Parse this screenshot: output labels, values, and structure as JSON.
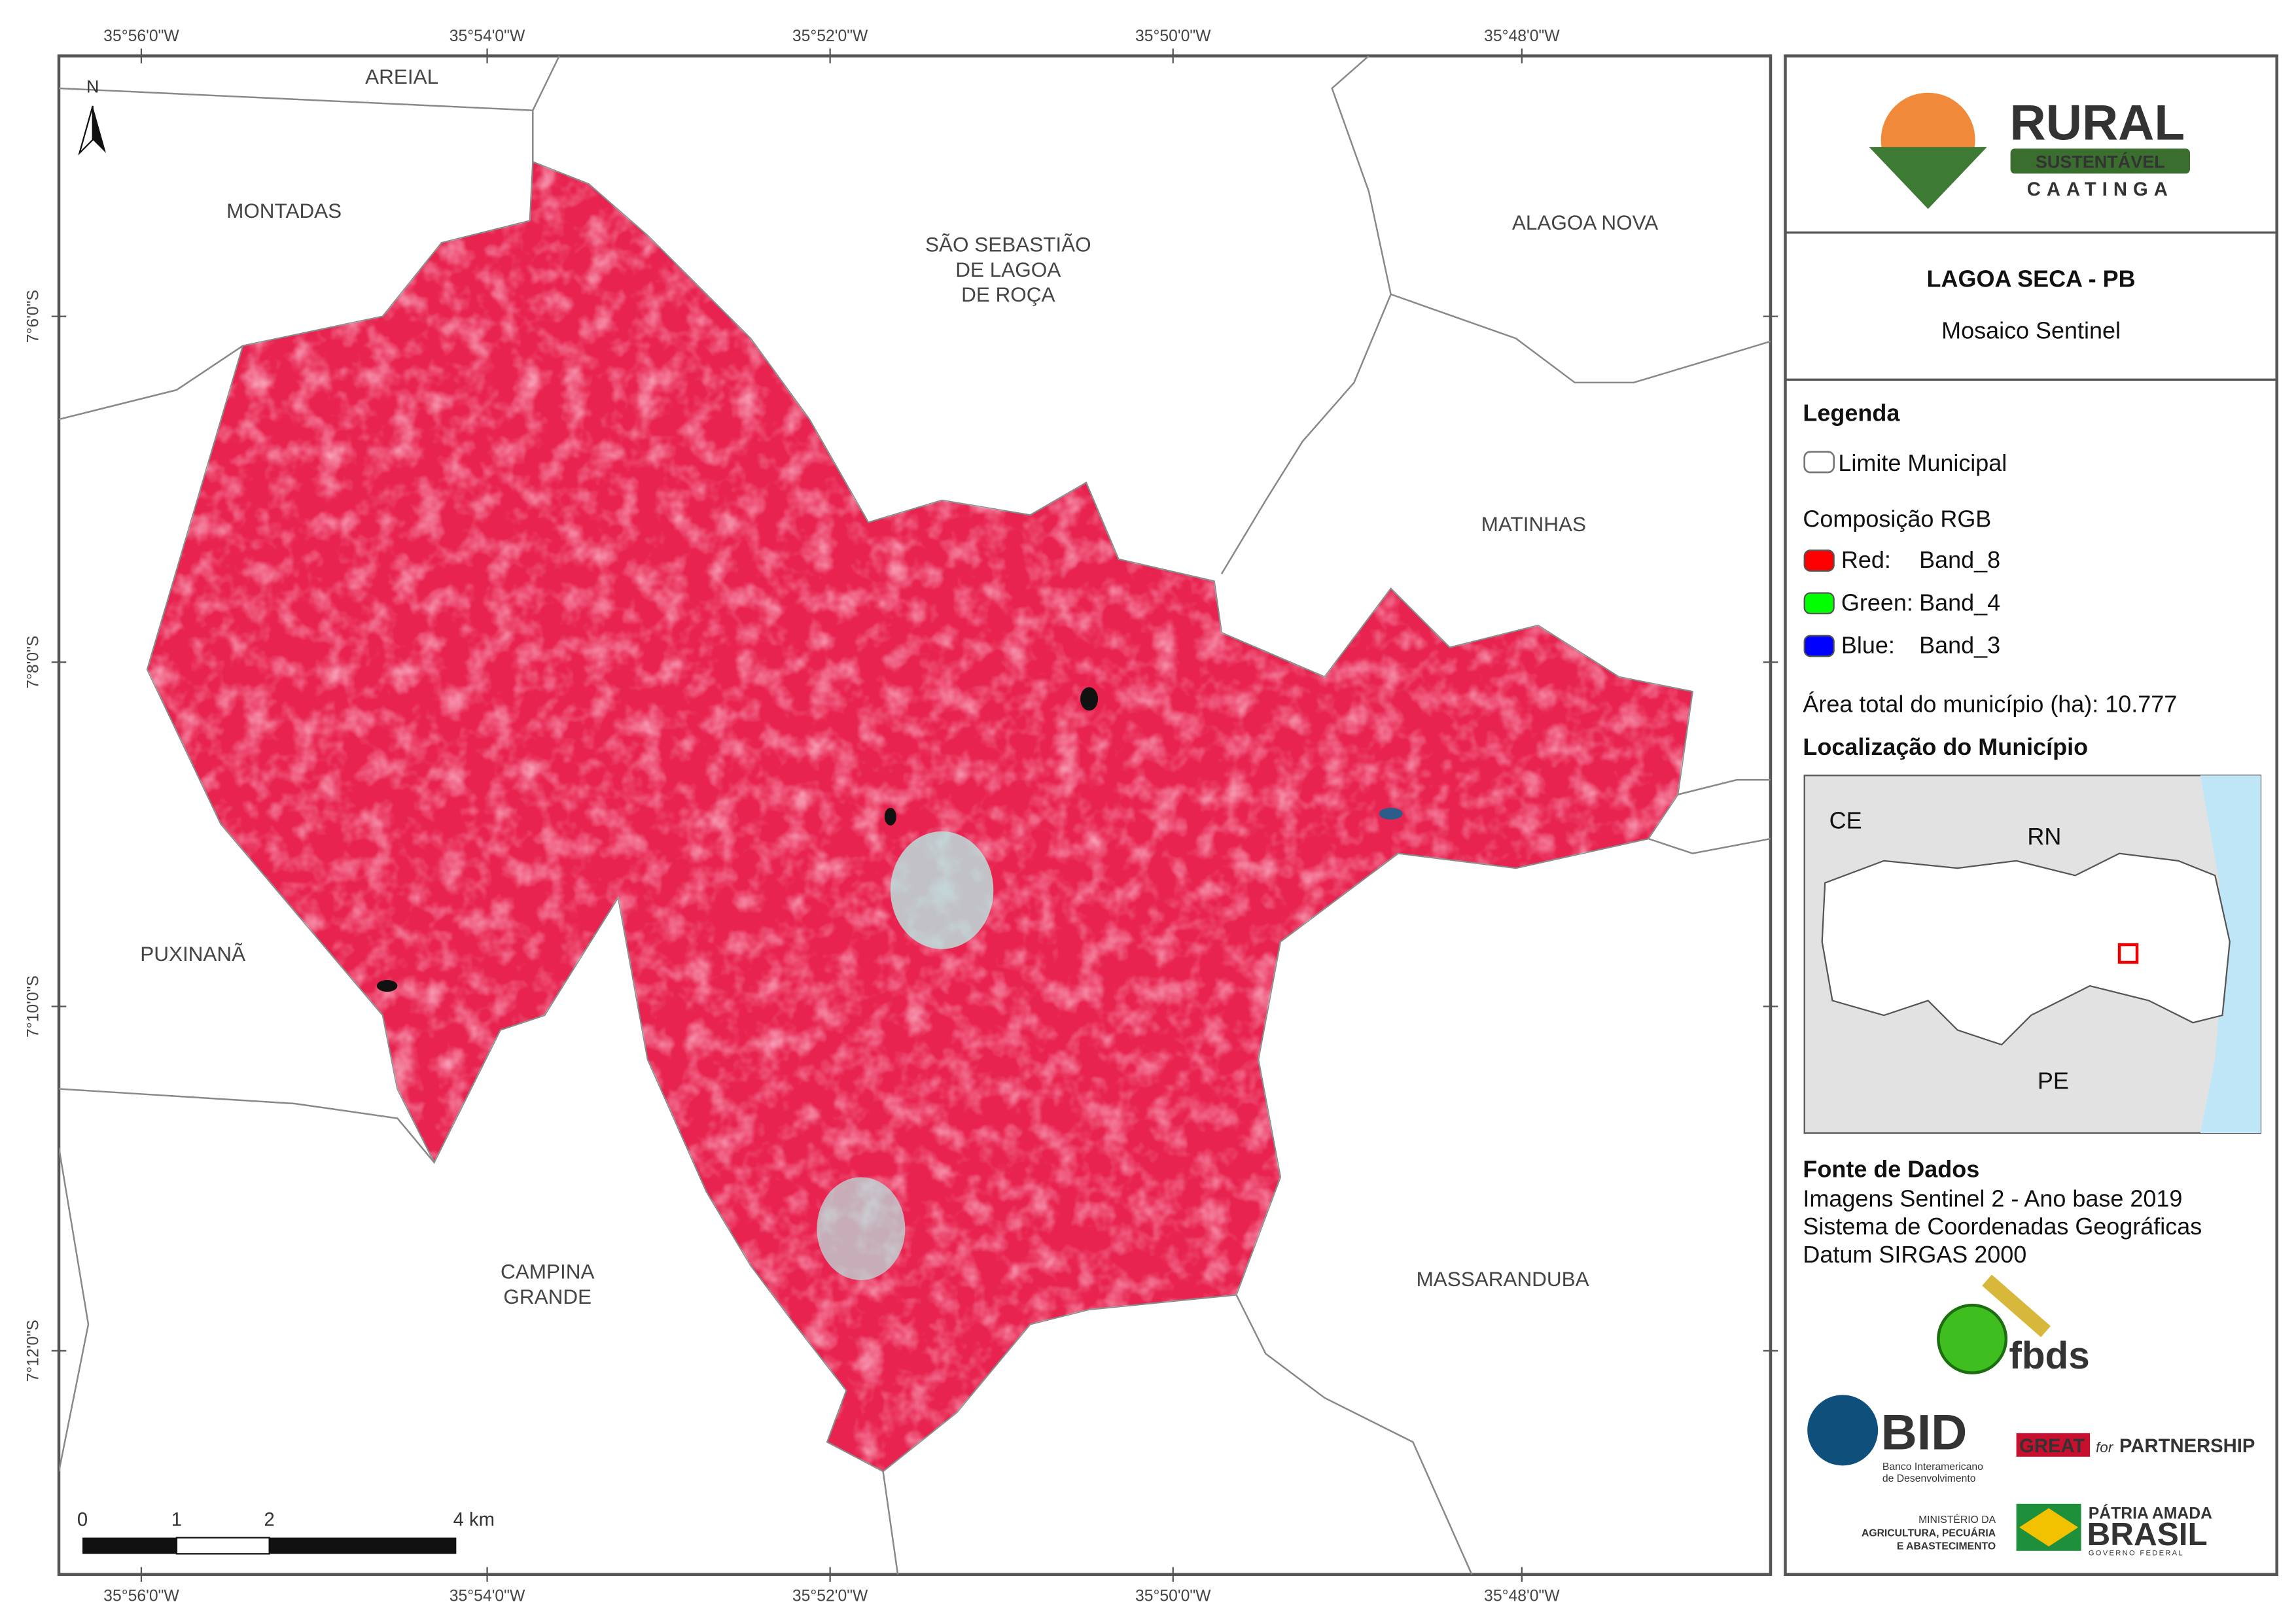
{
  "map": {
    "x_coords": [
      "35°56'0\"W",
      "35°54'0\"W",
      "35°52'0\"W",
      "35°50'0\"W",
      "35°48'0\"W"
    ],
    "y_coords": [
      "7°6'0\"S",
      "7°8'0\"S",
      "7°10'0\"S",
      "7°12'0\"S"
    ],
    "north": "N",
    "places": [
      {
        "lines": [
          "AREIAL"
        ]
      },
      {
        "lines": [
          "MONTADAS"
        ]
      },
      {
        "lines": [
          "SÃO SEBASTIÃO",
          "DE LAGOA",
          "DE ROÇA"
        ]
      },
      {
        "lines": [
          "ALAGOA NOVA"
        ]
      },
      {
        "lines": [
          "MATINHAS"
        ]
      },
      {
        "lines": [
          "PUXINANÃ"
        ]
      },
      {
        "lines": [
          "CAMPINA",
          "GRANDE"
        ]
      },
      {
        "lines": [
          "MASSARANDUBA"
        ]
      }
    ],
    "scale_labels": [
      "0",
      "1",
      "2",
      "4 km"
    ]
  },
  "panel": {
    "logo": {
      "title": "RURAL",
      "subtitle": "SUSTENTÁVEL",
      "tagline": "CAATINGA"
    },
    "title": "LAGOA SECA - PB",
    "subtitle": "Mosaico Sentinel",
    "legend": {
      "heading": "Legenda",
      "boundary": "Limite Municipal",
      "rgb_heading": "Composição RGB",
      "bands": [
        {
          "channel": "Red:",
          "band": "Band_8",
          "color": "#ff0000"
        },
        {
          "channel": "Green:",
          "band": "Band_4",
          "color": "#00ff00"
        },
        {
          "channel": "Blue:",
          "band": "Band_3",
          "color": "#0000ff"
        }
      ]
    },
    "area": "Área total do município (ha): 10.777",
    "location_heading": "Localização do Município",
    "inset_labels": [
      "CE",
      "RN",
      "PE"
    ],
    "sources_heading": "Fonte de Dados",
    "sources": [
      "Imagens Sentinel 2 - Ano base 2019",
      "Sistema de Coordenadas Geográficas",
      "Datum SIRGAS 2000"
    ],
    "logos": {
      "fbds": "fbds",
      "bid": "BID",
      "bid_name": [
        "Banco Interamericano",
        "de Desenvolvimento"
      ],
      "great": "GREAT",
      "great_for": "for",
      "great_partnership": "PARTNERSHIP",
      "ministry": [
        "MINISTÉRIO DA",
        "AGRICULTURA, PECUÁRIA",
        "E ABASTECIMENTO"
      ],
      "brasil_top": "PÁTRIA AMADA",
      "brasil": "BRASIL",
      "brasil_gov": "GOVERNO FEDERAL"
    }
  }
}
